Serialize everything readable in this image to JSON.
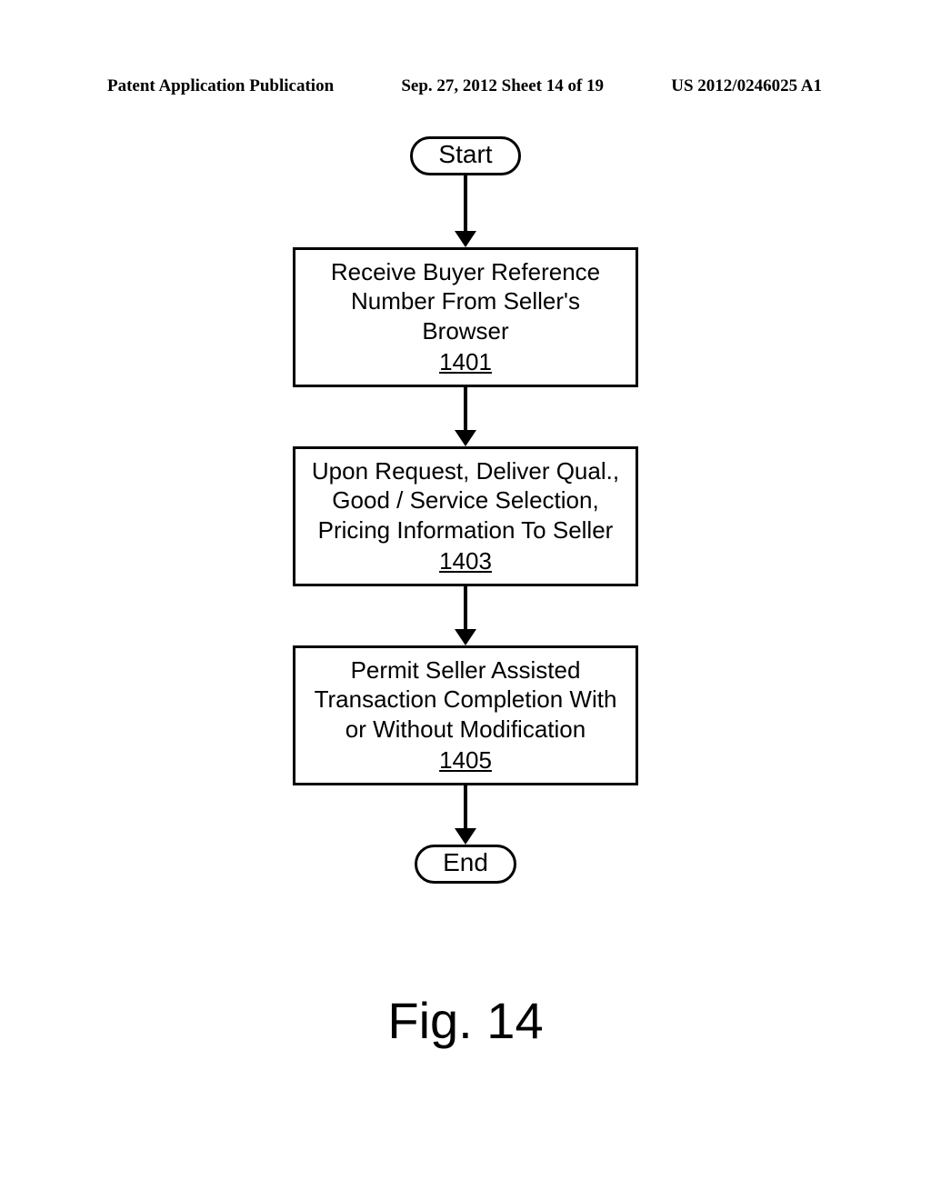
{
  "header": {
    "left": "Patent Application Publication",
    "center": "Sep. 27, 2012  Sheet 14 of 19",
    "right": "US 2012/0246025 A1"
  },
  "flowchart": {
    "type": "flowchart",
    "background_color": "#ffffff",
    "stroke_color": "#000000",
    "stroke_width": 3,
    "node_font_size": 26,
    "terminal_font_size": 28,
    "terminal_border_radius": 26,
    "process_width": 380,
    "arrow_head_size": 18,
    "nodes": {
      "start": {
        "shape": "terminal",
        "label": "Start"
      },
      "step1": {
        "shape": "process",
        "lines": [
          "Receive Buyer Reference",
          "Number From Seller's Browser"
        ],
        "ref": "1401"
      },
      "step2": {
        "shape": "process",
        "lines": [
          "Upon Request, Deliver Qual.,",
          "Good / Service Selection,",
          "Pricing Information To Seller"
        ],
        "ref": "1403"
      },
      "step3": {
        "shape": "process",
        "lines": [
          "Permit Seller Assisted",
          "Transaction Completion With",
          "or Without Modification"
        ],
        "ref": "1405"
      },
      "end": {
        "shape": "terminal",
        "label": "End"
      }
    },
    "arrows": {
      "a1_height": 62,
      "a2_height": 48,
      "a3_height": 48,
      "a4_height": 48
    }
  },
  "figure_label": "Fig. 14"
}
